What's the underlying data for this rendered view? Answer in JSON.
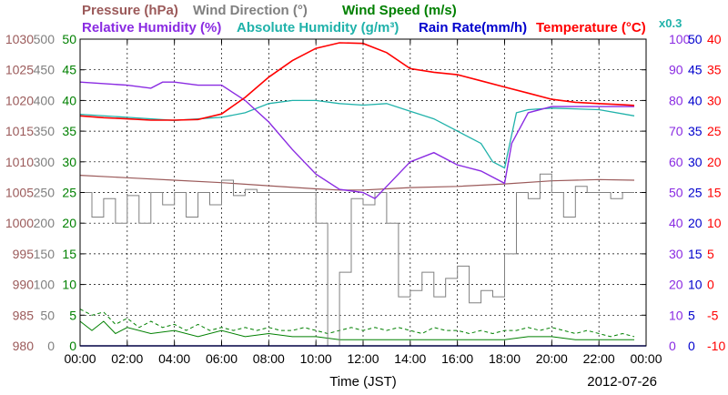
{
  "chart_data": {
    "type": "line",
    "date": "2012-07-26",
    "xlabel": "Time (JST)",
    "x_ticks": [
      "00:00",
      "02:00",
      "04:00",
      "06:00",
      "08:00",
      "10:00",
      "12:00",
      "14:00",
      "16:00",
      "18:00",
      "20:00",
      "22:00",
      "00:00"
    ],
    "xlim_hours": [
      0,
      24
    ],
    "grid": true,
    "legend_placement": "top",
    "legend": [
      {
        "key": "pressure",
        "label": "Pressure (hPa)",
        "color": "#9b5a5a"
      },
      {
        "key": "wind_direction",
        "label": "Wind Direction (°)",
        "color": "#808080"
      },
      {
        "key": "wind_speed",
        "label": "Wind Speed (m/s)",
        "color": "#008000"
      },
      {
        "key": "relative_humidity",
        "label": "Relative Humidity (%)",
        "color": "#8a2be2"
      },
      {
        "key": "absolute_humidity",
        "label": "Absolute Humidity (g/m³)",
        "color": "#20b2aa"
      },
      {
        "key": "abs_hum_scale",
        "label": "x0.3",
        "color": "#20b2aa"
      },
      {
        "key": "rain_rate",
        "label": "Rain Rate(mm/h)",
        "color": "#0000cd"
      },
      {
        "key": "temperature",
        "label": "Temperature (°C)",
        "color": "#ff0000"
      }
    ],
    "axes": {
      "pressure": {
        "range": [
          980,
          1030
        ],
        "ticks": [
          "1030",
          "1025",
          "1020",
          "1015",
          "1010",
          "1005",
          "1000",
          "995",
          "990",
          "985",
          "980"
        ],
        "color": "#9b5a5a"
      },
      "wind_direction": {
        "range": [
          0,
          500
        ],
        "ticks": [
          "500",
          "450",
          "400",
          "350",
          "300",
          "250",
          "200",
          "150",
          "100",
          "50",
          "0"
        ],
        "color": "#808080"
      },
      "wind_speed": {
        "range": [
          0,
          50
        ],
        "ticks": [
          "50",
          "45",
          "40",
          "35",
          "30",
          "25",
          "20",
          "15",
          "10",
          "5",
          "0"
        ],
        "color": "#008000"
      },
      "relative_humidity": {
        "range": [
          0,
          100
        ],
        "ticks": [
          "100",
          "90",
          "80",
          "70",
          "60",
          "50",
          "40",
          "30",
          "20",
          "10",
          "0"
        ],
        "color": "#8a2be2"
      },
      "rain_rate": {
        "range": [
          0,
          50
        ],
        "ticks": [
          "50",
          "45",
          "40",
          "35",
          "30",
          "25",
          "20",
          "15",
          "10",
          "5",
          "0"
        ],
        "color": "#0000cd"
      },
      "temperature": {
        "range": [
          -10,
          40
        ],
        "ticks": [
          "40",
          "35",
          "30",
          "25",
          "20",
          "15",
          "10",
          "5",
          "0",
          "-5",
          "-10"
        ],
        "color": "#ff0000"
      }
    },
    "series": {
      "pressure": {
        "name": "Pressure (hPa)",
        "x": [
          0,
          2,
          4,
          6,
          8,
          10,
          11,
          12,
          13,
          14,
          16,
          18,
          20,
          22,
          23.5
        ],
        "y": [
          1007.8,
          1007.4,
          1007.0,
          1006.6,
          1006.1,
          1005.6,
          1005.4,
          1005.4,
          1005.6,
          1005.8,
          1006.0,
          1006.4,
          1006.9,
          1007.1,
          1007.0
        ]
      },
      "temperature": {
        "name": "Temperature (°C)",
        "x": [
          0,
          1,
          2,
          3,
          4,
          5,
          6,
          7,
          8,
          9,
          10,
          11,
          12,
          13,
          14,
          15,
          16,
          17,
          18,
          19,
          20,
          21,
          22,
          23,
          23.5
        ],
        "y": [
          27.5,
          27.2,
          27.0,
          26.8,
          26.8,
          26.9,
          27.8,
          30.5,
          33.8,
          36.5,
          38.5,
          39.4,
          39.3,
          37.8,
          35.2,
          34.6,
          34.2,
          33.2,
          32.2,
          31.2,
          30.2,
          29.7,
          29.5,
          29.3,
          29.2
        ]
      },
      "relative_humidity": {
        "name": "Relative Humidity (%)",
        "x": [
          0,
          2,
          3,
          3.5,
          4,
          5,
          6,
          7,
          8,
          9,
          10,
          11,
          12,
          12.5,
          13,
          14,
          15,
          16,
          17,
          18,
          18.3,
          19,
          20,
          22,
          23.5
        ],
        "y": [
          86,
          85,
          84,
          86,
          86,
          85,
          85,
          80,
          73,
          64,
          56,
          51,
          50,
          48,
          52,
          60,
          63,
          59,
          57,
          53,
          66,
          76,
          78,
          78,
          78
        ]
      },
      "absolute_humidity": {
        "name": "Absolute Humidity (g/m³)",
        "scale": "x0.3",
        "x": [
          0,
          2,
          4,
          6,
          7,
          8,
          9,
          10,
          11,
          12,
          13,
          14,
          15,
          16,
          17,
          17.5,
          18,
          18.5,
          19,
          20,
          22,
          23.5
        ],
        "y": [
          75.5,
          74.5,
          73.5,
          74.5,
          76,
          79,
          80,
          80,
          79,
          78.5,
          79,
          76.5,
          74,
          70,
          66,
          60,
          58,
          76,
          77,
          77.5,
          77,
          75
        ]
      },
      "wind_direction": {
        "name": "Wind Direction (°)",
        "x": [
          0,
          0.5,
          1,
          1.5,
          2,
          2.5,
          3,
          3.5,
          4,
          4.5,
          5,
          5.5,
          6,
          6.5,
          7,
          7.5,
          8,
          8.5,
          9,
          9.5,
          10,
          10.5,
          11,
          11.5,
          12,
          12.5,
          13,
          13.5,
          14,
          14.5,
          15,
          15.5,
          16,
          16.5,
          17,
          17.5,
          18,
          18.5,
          19,
          19.5,
          20,
          20.5,
          21,
          21.5,
          22,
          22.5,
          23,
          23.5
        ],
        "y": [
          250,
          210,
          240,
          200,
          245,
          200,
          250,
          230,
          250,
          210,
          250,
          230,
          270,
          245,
          255,
          250,
          250,
          250,
          250,
          250,
          200,
          0,
          120,
          240,
          230,
          250,
          200,
          80,
          90,
          120,
          80,
          110,
          130,
          70,
          90,
          80,
          150,
          250,
          240,
          280,
          250,
          210,
          260,
          250,
          250,
          240,
          250,
          250
        ]
      },
      "wind_speed": {
        "name": "Wind Speed (m/s)",
        "x": [
          0,
          0.5,
          1,
          1.5,
          2,
          3,
          4,
          5,
          6,
          7,
          8,
          9,
          10,
          11,
          12,
          13,
          14,
          15,
          16,
          17,
          18,
          19,
          20,
          21,
          22,
          23,
          23.5
        ],
        "y": [
          4,
          2.5,
          4,
          2,
          3,
          2,
          2.5,
          1.5,
          2.5,
          1.5,
          2,
          1.5,
          1.5,
          1,
          1,
          1,
          1,
          1,
          1,
          1,
          1,
          1.5,
          1.5,
          1,
          1,
          1,
          1
        ]
      },
      "wind_gust": {
        "name": "Wind Speed (m/s)",
        "x": [
          0,
          0.5,
          1,
          1.5,
          2,
          2.5,
          3,
          3.5,
          4,
          4.5,
          5,
          5.5,
          6,
          6.5,
          7,
          7.5,
          8,
          8.5,
          9,
          9.5,
          10,
          10.5,
          11,
          11.5,
          12,
          12.5,
          13,
          13.5,
          14,
          14.5,
          15,
          15.5,
          16,
          16.5,
          17,
          17.5,
          18,
          18.5,
          19,
          19.5,
          20,
          20.5,
          21,
          21.5,
          22,
          22.5,
          23,
          23.5
        ],
        "y": [
          6,
          5,
          5.5,
          3.5,
          4.5,
          3,
          4,
          3,
          3.5,
          2.5,
          3.5,
          2.5,
          3,
          2.5,
          3,
          2.5,
          3,
          2.5,
          2.5,
          3,
          2.5,
          2,
          2.5,
          3,
          2.5,
          3,
          2.5,
          3,
          2.5,
          2,
          3,
          2.5,
          2.5,
          2,
          2.5,
          2,
          2.5,
          2.5,
          3,
          2.5,
          3,
          2.5,
          2,
          2.5,
          2,
          1.5,
          2,
          1.5
        ]
      },
      "rain_rate": {
        "name": "Rain Rate(mm/h)",
        "x": [
          0,
          24
        ],
        "y": [
          0,
          0
        ]
      }
    }
  }
}
